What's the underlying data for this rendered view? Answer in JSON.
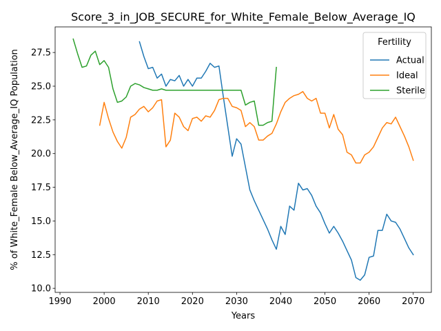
{
  "chart_data": {
    "type": "line",
    "title": "Score_3_in_JOB_SECURE_for_White_Female_Below_Average_IQ",
    "xlabel": "Years",
    "ylabel": "% of White_Female Below_Average_IQ Population",
    "xlim": [
      1988.9,
      2074.1
    ],
    "ylim": [
      9.7,
      29.4
    ],
    "xticks": [
      1990,
      2000,
      2010,
      2020,
      2030,
      2040,
      2050,
      2060,
      2070
    ],
    "yticks": [
      10.0,
      12.5,
      15.0,
      17.5,
      20.0,
      22.5,
      25.0,
      27.5
    ],
    "xtick_labels": [
      "1990",
      "2000",
      "2010",
      "2020",
      "2030",
      "2040",
      "2050",
      "2060",
      "2070"
    ],
    "ytick_labels": [
      "10.0",
      "12.5",
      "15.0",
      "17.5",
      "20.0",
      "22.5",
      "25.0",
      "27.5"
    ],
    "grid": false,
    "legend": {
      "title": "Fertility",
      "placement": "top-right"
    },
    "series": [
      {
        "name": "Actual",
        "color": "#1f77b4",
        "x": [
          2008,
          2009,
          2010,
          2011,
          2012,
          2013,
          2014,
          2015,
          2016,
          2017,
          2018,
          2019,
          2020,
          2021,
          2022,
          2023,
          2024,
          2025,
          2026,
          2027,
          2028,
          2029,
          2030,
          2031,
          2032,
          2033,
          2034,
          2035,
          2036,
          2037,
          2038,
          2039,
          2040,
          2041,
          2042,
          2043,
          2044,
          2045,
          2046,
          2047,
          2048,
          2049,
          2050,
          2051,
          2052,
          2053,
          2054,
          2055,
          2056,
          2057,
          2058,
          2059,
          2060,
          2061,
          2062,
          2063,
          2064,
          2065,
          2066,
          2067,
          2068,
          2069,
          2070
        ],
        "y": [
          28.3,
          27.2,
          26.3,
          26.4,
          25.6,
          25.9,
          25.0,
          25.5,
          25.4,
          25.8,
          25.0,
          25.5,
          25.0,
          25.6,
          25.6,
          26.1,
          26.7,
          26.4,
          26.5,
          24.2,
          22.0,
          19.8,
          21.1,
          20.7,
          19.0,
          17.3,
          16.5,
          15.8,
          15.1,
          14.4,
          13.6,
          12.9,
          14.6,
          14.0,
          16.1,
          15.8,
          17.8,
          17.3,
          17.4,
          16.9,
          16.1,
          15.6,
          14.8,
          14.1,
          14.6,
          14.1,
          13.5,
          12.8,
          12.1,
          10.8,
          10.6,
          11.0,
          12.3,
          12.4,
          14.3,
          14.3,
          15.5,
          15.0,
          14.9,
          14.4,
          13.7,
          13.0,
          12.5
        ]
      },
      {
        "name": "Ideal",
        "color": "#ff7f0e",
        "x": [
          1999,
          2000,
          2001,
          2002,
          2003,
          2004,
          2005,
          2006,
          2007,
          2008,
          2009,
          2010,
          2011,
          2012,
          2013,
          2014,
          2015,
          2016,
          2017,
          2018,
          2019,
          2020,
          2021,
          2022,
          2023,
          2024,
          2025,
          2026,
          2027,
          2028,
          2029,
          2030,
          2031,
          2032,
          2033,
          2034,
          2035,
          2036,
          2037,
          2038,
          2039,
          2040,
          2041,
          2042,
          2043,
          2044,
          2045,
          2046,
          2047,
          2048,
          2049,
          2050,
          2051,
          2052,
          2053,
          2054,
          2055,
          2056,
          2057,
          2058,
          2059,
          2060,
          2061,
          2062,
          2063,
          2064,
          2065,
          2066,
          2067,
          2068,
          2069,
          2070
        ],
        "y": [
          22.1,
          23.8,
          22.6,
          21.6,
          20.9,
          20.4,
          21.2,
          22.7,
          22.9,
          23.3,
          23.5,
          23.1,
          23.4,
          23.9,
          24.0,
          20.5,
          21.0,
          23.0,
          22.7,
          22.0,
          21.7,
          22.6,
          22.7,
          22.4,
          22.8,
          22.7,
          23.2,
          24.0,
          24.1,
          24.1,
          23.5,
          23.4,
          23.2,
          22.0,
          22.3,
          22.0,
          21.0,
          21.0,
          21.3,
          21.5,
          22.2,
          23.1,
          23.8,
          24.1,
          24.3,
          24.4,
          24.6,
          24.1,
          23.9,
          24.1,
          23.0,
          23.0,
          21.9,
          22.9,
          21.8,
          21.4,
          20.1,
          19.9,
          19.3,
          19.3,
          19.9,
          20.1,
          20.5,
          21.2,
          21.9,
          22.3,
          22.2,
          22.7,
          22.0,
          21.3,
          20.5,
          19.5
        ]
      },
      {
        "name": "Sterile",
        "color": "#2ca02c",
        "x": [
          1993,
          1994,
          1995,
          1996,
          1997,
          1998,
          1999,
          2000,
          2001,
          2002,
          2003,
          2004,
          2005,
          2006,
          2007,
          2008,
          2009,
          2010,
          2011,
          2012,
          2013,
          2014,
          2015,
          2016,
          2017,
          2018,
          2019,
          2020,
          2021,
          2022,
          2023,
          2024,
          2025,
          2026,
          2027,
          2028,
          2029,
          2030,
          2031,
          2032,
          2033,
          2034,
          2035,
          2036,
          2037,
          2038,
          2039
        ],
        "y": [
          28.5,
          27.4,
          26.4,
          26.5,
          27.3,
          27.6,
          26.6,
          26.9,
          26.4,
          24.8,
          23.8,
          23.9,
          24.2,
          25.0,
          25.2,
          25.1,
          24.9,
          24.8,
          24.7,
          24.7,
          24.8,
          24.7,
          24.7,
          24.7,
          24.7,
          24.7,
          24.7,
          24.7,
          24.7,
          24.7,
          24.7,
          24.7,
          24.7,
          24.7,
          24.7,
          24.7,
          24.7,
          24.7,
          24.7,
          23.6,
          23.8,
          23.9,
          22.1,
          22.1,
          22.3,
          22.4,
          26.4
        ]
      }
    ]
  }
}
